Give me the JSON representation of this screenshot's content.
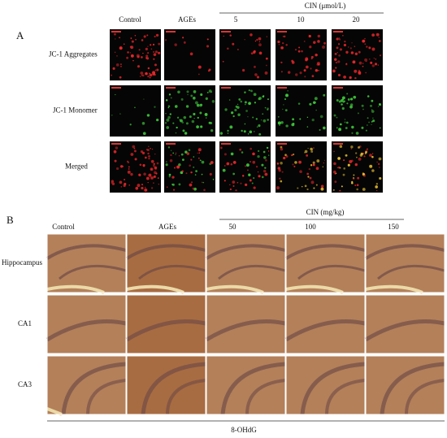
{
  "panel_a": {
    "label": "A",
    "group_label": "CIN (μmol/L)",
    "columns": [
      "Control",
      "AGEs",
      "5",
      "10",
      "20"
    ],
    "rows": [
      "JC-1 Aggregates",
      "JC-1 Monomer",
      "Merged"
    ]
  },
  "panel_b": {
    "label": "B",
    "group_label": "CIN (mg/kg)",
    "columns": [
      "Control",
      "AGEs",
      "50",
      "100",
      "150"
    ],
    "rows": [
      "Hippocampus",
      "CA1",
      "CA3"
    ],
    "footer": "8-OHdG"
  }
}
